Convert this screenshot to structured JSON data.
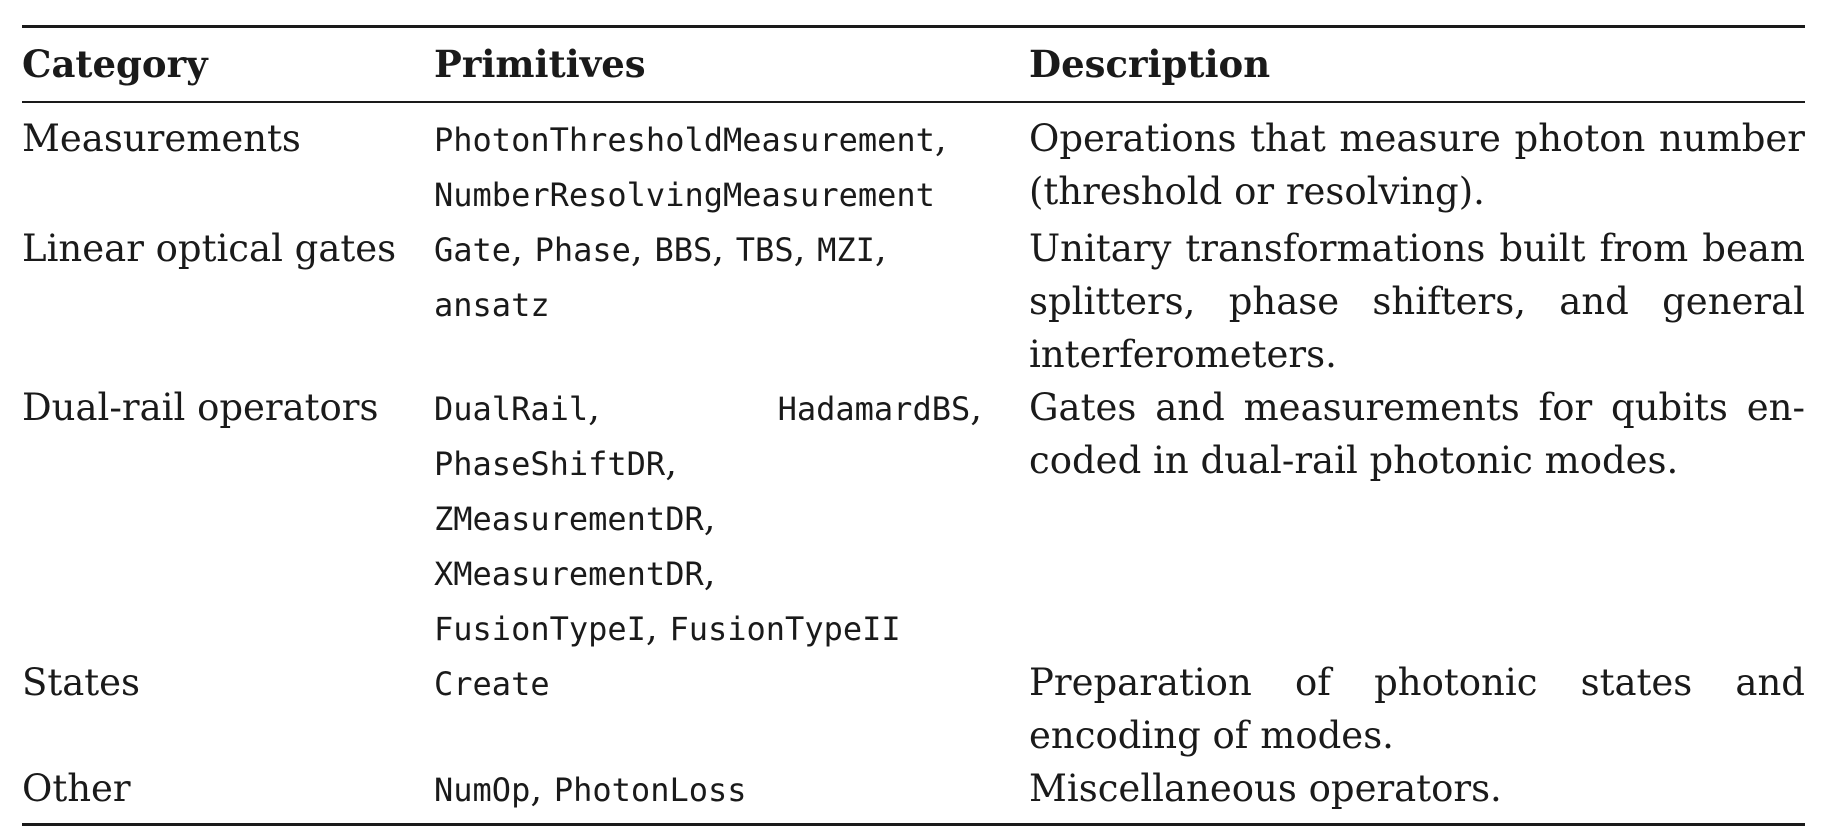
{
  "table": {
    "headers": {
      "category": "Category",
      "primitives": "Primitives",
      "description": "Description"
    },
    "rows": [
      {
        "category": "Measurements",
        "primitives": [
          [
            "PhotonThresholdMeasurement",
            ","
          ],
          [
            "NumberResolvingMeasurement",
            ""
          ]
        ],
        "description": "Operations that measure photon number (threshold or resolving)."
      },
      {
        "category": "Linear optical gates",
        "primitives": [
          [
            "Gate",
            ", ",
            "Phase",
            ", ",
            "BBS",
            ", ",
            "TBS",
            ", ",
            "MZI",
            ","
          ],
          [
            "ansatz",
            ""
          ]
        ],
        "description": "Unitary transformations built from beam splitters, phase shifters, and general inter­ferometers."
      },
      {
        "category": "Dual-rail operators",
        "primitives": [
          [
            "DualRail",
            ",",
            "HadamardBS",
            ","
          ],
          [
            "PhaseShiftDR",
            ","
          ],
          [
            "ZMeasurementDR",
            ","
          ],
          [
            "XMeasurementDR",
            ","
          ],
          [
            "FusionTypeI",
            ", ",
            "FusionTypeII",
            ""
          ]
        ],
        "description": "Gates and measurements for qubits en­coded in dual-rail photonic modes."
      },
      {
        "category": "States",
        "primitives": [
          [
            "Create",
            ""
          ]
        ],
        "description": "Preparation of photonic states and encod­ing of modes."
      },
      {
        "category": "Other",
        "primitives": [
          [
            "NumOp",
            ", ",
            "PhotonLoss",
            ""
          ]
        ],
        "description": "Miscellaneous operators."
      }
    ]
  }
}
